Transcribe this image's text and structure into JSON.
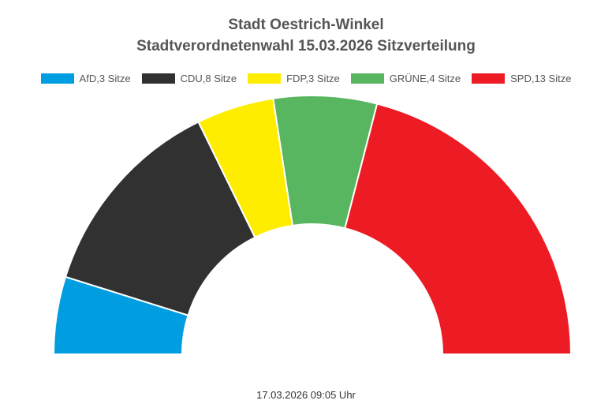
{
  "chart_data": {
    "type": "pie",
    "subtype": "half-donut",
    "title": "Stadt Oestrich-Winkel",
    "subtitle": "Stadtverordnetenwahl 15.03.2026 Sitzverteilung",
    "series": [
      {
        "legend": "AfD,3 Sitze",
        "value": 3,
        "color": "#009ee0"
      },
      {
        "legend": "CDU,8 Sitze",
        "value": 8,
        "color": "#323132"
      },
      {
        "legend": "FDP,3 Sitze",
        "value": 3,
        "color": "#ffed00"
      },
      {
        "legend": "GRÜNE,4 Sitze",
        "value": 4,
        "color": "#58b560"
      },
      {
        "legend": "SPD,13 Sitze",
        "value": 13,
        "color": "#ed1c24"
      }
    ],
    "legend_position": "top"
  },
  "footer": {
    "timestamp": "17.03.2026 09:05 Uhr"
  }
}
